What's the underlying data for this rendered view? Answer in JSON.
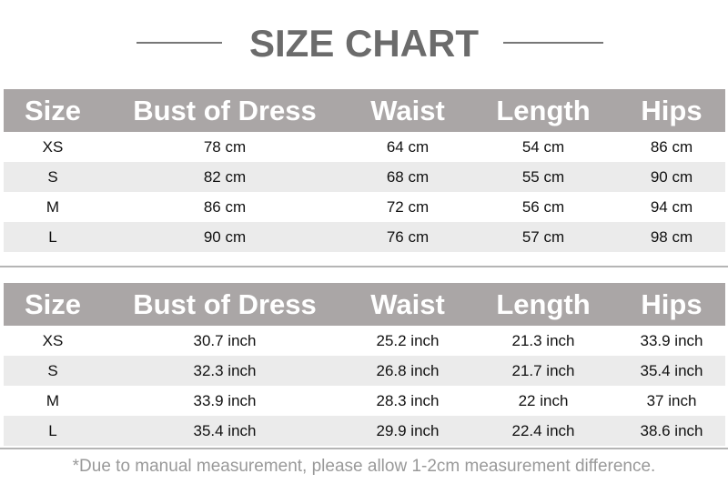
{
  "title": "SIZE CHART",
  "headers": [
    "Size",
    "Bust of Dress",
    "Waist",
    "Length",
    "Hips"
  ],
  "tables": [
    {
      "rows": [
        [
          "XS",
          "78 cm",
          "64 cm",
          "54 cm",
          "86 cm"
        ],
        [
          "S",
          "82 cm",
          "68 cm",
          "55 cm",
          "90 cm"
        ],
        [
          "M",
          "86 cm",
          "72 cm",
          "56 cm",
          "94 cm"
        ],
        [
          "L",
          "90 cm",
          "76 cm",
          "57 cm",
          "98 cm"
        ]
      ]
    },
    {
      "rows": [
        [
          "XS",
          "30.7 inch",
          "25.2 inch",
          "21.3 inch",
          "33.9 inch"
        ],
        [
          "S",
          "32.3 inch",
          "26.8 inch",
          "21.7 inch",
          "35.4 inch"
        ],
        [
          "M",
          "33.9 inch",
          "28.3 inch",
          "22 inch",
          "37 inch"
        ],
        [
          "L",
          "35.4 inch",
          "29.9 inch",
          "22.4 inch",
          "38.6 inch"
        ]
      ]
    }
  ],
  "note": "*Due to manual measurement, please allow 1-2cm measurement difference.",
  "colors": {
    "header_bg": "#aaa6a6",
    "alt_row": "#ebebeb",
    "title": "#6b6b6b"
  }
}
